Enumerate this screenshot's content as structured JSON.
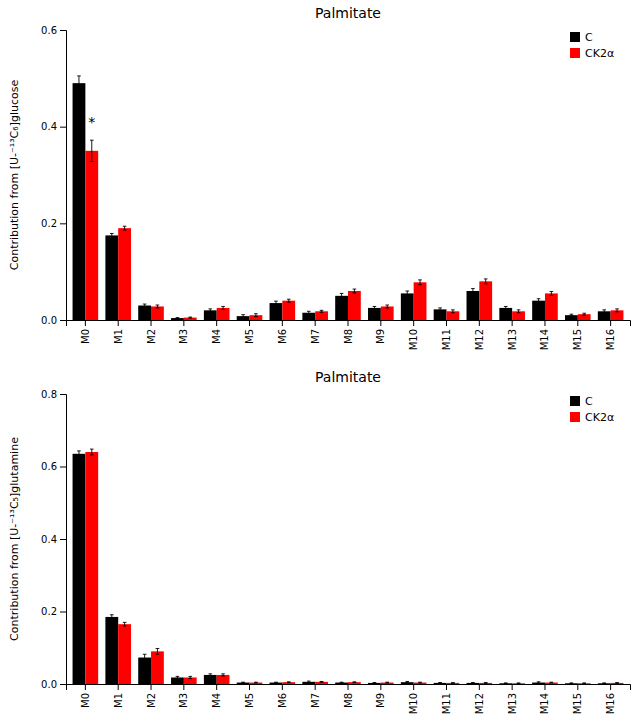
{
  "chart_data": [
    {
      "type": "bar",
      "title": "Palmitate",
      "y_label": "Contribution from [U-⁻¹³C₆]glucose",
      "categories": [
        "M0",
        "M1",
        "M2",
        "M3",
        "M4",
        "M5",
        "M6",
        "M7",
        "M8",
        "M9",
        "M10",
        "M11",
        "M12",
        "M13",
        "M14",
        "M15",
        "M16"
      ],
      "series": [
        {
          "name": "C",
          "color": "#000000",
          "values": [
            0.49,
            0.175,
            0.03,
            0.004,
            0.02,
            0.008,
            0.035,
            0.015,
            0.05,
            0.025,
            0.055,
            0.022,
            0.06,
            0.025,
            0.04,
            0.01,
            0.018
          ],
          "errors": [
            0.015,
            0.004,
            0.003,
            0.001,
            0.003,
            0.003,
            0.004,
            0.003,
            0.005,
            0.003,
            0.005,
            0.003,
            0.005,
            0.003,
            0.004,
            0.002,
            0.003
          ]
        },
        {
          "name": "CK2α",
          "color": "#ff0000",
          "values": [
            0.35,
            0.19,
            0.028,
            0.005,
            0.025,
            0.01,
            0.04,
            0.018,
            0.06,
            0.028,
            0.078,
            0.018,
            0.08,
            0.018,
            0.055,
            0.012,
            0.02
          ],
          "errors": [
            0.022,
            0.004,
            0.003,
            0.001,
            0.003,
            0.003,
            0.003,
            0.002,
            0.004,
            0.003,
            0.005,
            0.003,
            0.005,
            0.003,
            0.004,
            0.002,
            0.003
          ]
        }
      ],
      "ylim": [
        0,
        0.6
      ],
      "yticks": [
        {
          "value": 0,
          "label": "0.0"
        },
        0.2,
        0.4,
        0.6
      ],
      "grid": false,
      "legend": "upper right",
      "annotations": [
        {
          "text": "*",
          "x": "M0",
          "y": 0.4
        }
      ]
    },
    {
      "type": "bar",
      "title": "Palmitate",
      "y_label": "Contribution from [U-⁻¹³C₅]glutamine",
      "categories": [
        "M0",
        "M1",
        "M2",
        "M3",
        "M4",
        "M5",
        "M6",
        "M7",
        "M8",
        "M9",
        "M10",
        "M11",
        "M12",
        "M13",
        "M14",
        "M15",
        "M16"
      ],
      "series": [
        {
          "name": "C",
          "color": "#000000",
          "values": [
            0.635,
            0.185,
            0.073,
            0.018,
            0.025,
            0.004,
            0.004,
            0.006,
            0.004,
            0.003,
            0.005,
            0.003,
            0.003,
            0.002,
            0.004,
            0.002,
            0.002
          ],
          "errors": [
            0.008,
            0.006,
            0.009,
            0.003,
            0.003,
            0.001,
            0.001,
            0.002,
            0.001,
            0.001,
            0.002,
            0.001,
            0.001,
            0.001,
            0.002,
            0.001,
            0.001
          ]
        },
        {
          "name": "CK2α",
          "color": "#ff0000",
          "values": [
            0.64,
            0.165,
            0.09,
            0.018,
            0.025,
            0.004,
            0.005,
            0.006,
            0.005,
            0.004,
            0.004,
            0.003,
            0.003,
            0.002,
            0.004,
            0.002,
            0.003
          ],
          "errors": [
            0.008,
            0.005,
            0.008,
            0.003,
            0.003,
            0.001,
            0.001,
            0.001,
            0.001,
            0.001,
            0.001,
            0.001,
            0.001,
            0.001,
            0.001,
            0.001,
            0.001
          ]
        }
      ],
      "ylim": [
        0,
        0.8
      ],
      "yticks": [
        {
          "value": 0,
          "label": "0.0"
        },
        0.2,
        0.4,
        0.6,
        0.8
      ],
      "grid": false,
      "legend": "upper right"
    }
  ]
}
